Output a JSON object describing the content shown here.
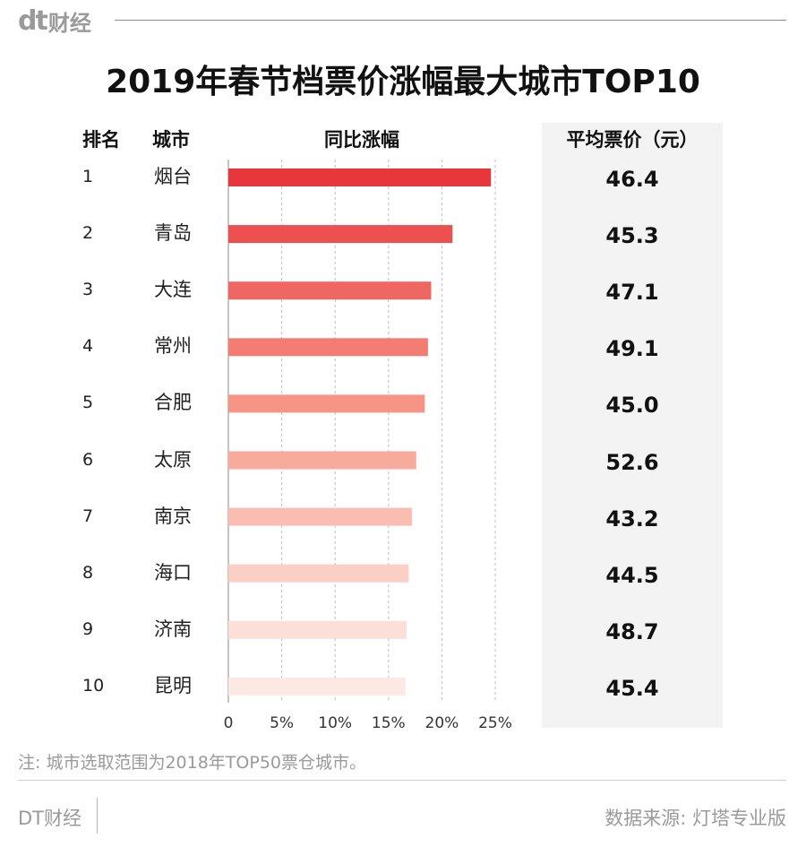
{
  "brand": {
    "logo_mark": "dt",
    "logo_text": "财经"
  },
  "title": "2019年春节档票价涨幅最大城市TOP10",
  "headers": {
    "rank": "排名",
    "city": "城市",
    "growth": "同比涨幅",
    "price": "平均票价（元）"
  },
  "chart_data": {
    "type": "bar",
    "orientation": "horizontal",
    "categories": [
      "烟台",
      "青岛",
      "大连",
      "常州",
      "合肥",
      "太原",
      "南京",
      "海口",
      "济南",
      "昆明"
    ],
    "ranks": [
      "1",
      "2",
      "3",
      "4",
      "5",
      "6",
      "7",
      "8",
      "9",
      "10"
    ],
    "values": [
      24.6,
      21.0,
      19.0,
      18.7,
      18.4,
      17.6,
      17.2,
      16.9,
      16.7,
      16.6
    ],
    "value_unit": "%",
    "avg_price": [
      "46.4",
      "45.3",
      "47.1",
      "49.1",
      "45.0",
      "52.6",
      "43.2",
      "44.5",
      "48.7",
      "45.4"
    ],
    "xlim": [
      0,
      25
    ],
    "xticks": [
      "0",
      "5%",
      "10%",
      "15%",
      "20%",
      "25%"
    ],
    "grid": "vertical dashed",
    "bar_colors": [
      "#e8373c",
      "#ec5150",
      "#ef6762",
      "#f37d73",
      "#f69485",
      "#f8aa9b",
      "#faBDB1",
      "#fbcfc6",
      "#fcdfd8",
      "#fde9e4"
    ]
  },
  "note": "注: 城市选取范围为2018年TOP50票仓城市。",
  "footer": {
    "brand": "DT财经",
    "source": "数据来源: 灯塔专业版"
  }
}
